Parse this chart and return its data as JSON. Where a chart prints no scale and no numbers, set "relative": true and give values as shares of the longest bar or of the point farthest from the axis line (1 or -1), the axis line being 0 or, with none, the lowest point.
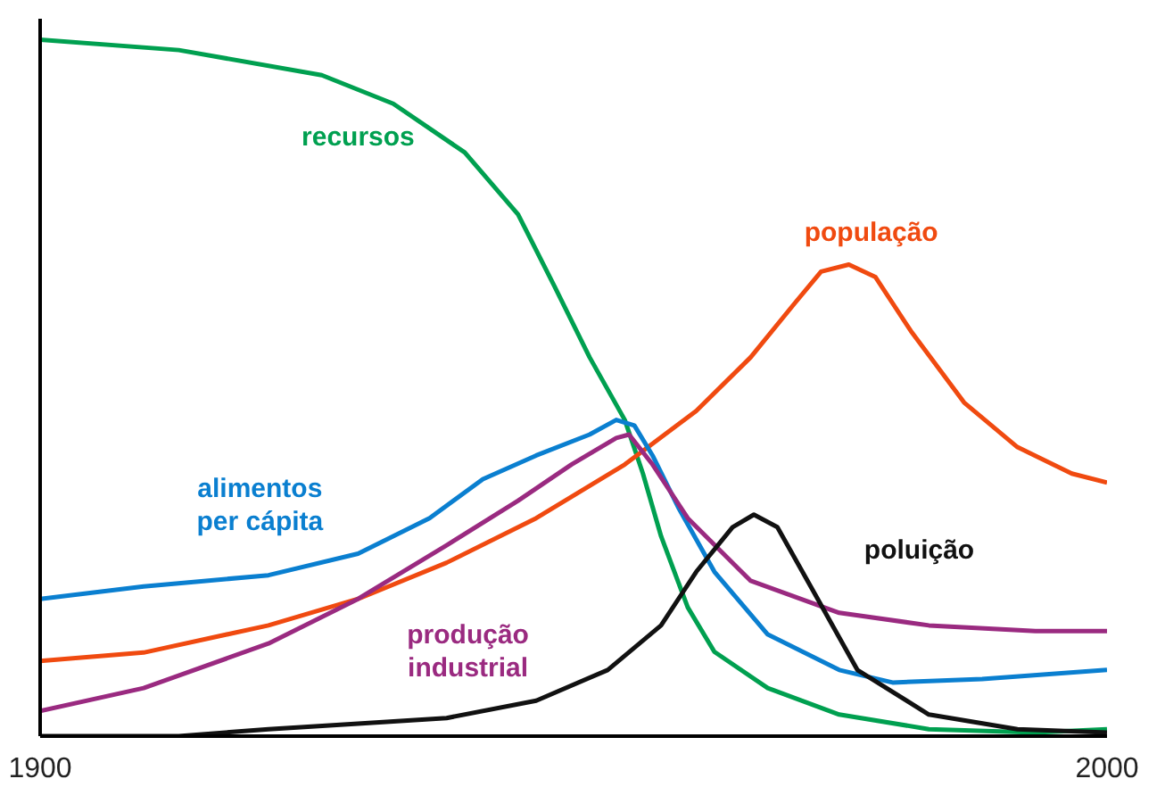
{
  "chart_data": {
    "type": "line",
    "relative": true,
    "xlim": [
      1900,
      2000
    ],
    "xticks": [
      1900,
      2000
    ],
    "legend": false,
    "grid": false,
    "marker": "none",
    "line_style": "solid",
    "series": [
      {
        "name": "recursos",
        "color": "#00a050",
        "x": [
          1900,
          1913.0,
          1926.4,
          1933.1,
          1939.8,
          1944.8,
          1948.2,
          1951.5,
          1954.8,
          1956.5,
          1958.2,
          1960.7,
          1963.2,
          1968.2,
          1974.9,
          1983.3,
          1993.3,
          2000
        ],
        "values": [
          1.0,
          0.985,
          0.949,
          0.908,
          0.838,
          0.749,
          0.646,
          0.544,
          0.454,
          0.377,
          0.287,
          0.185,
          0.121,
          0.069,
          0.031,
          0.01,
          0.005,
          0.01
        ]
      },
      {
        "name": "população",
        "color": "#f04a10",
        "x": [
          1900,
          1909.7,
          1921.4,
          1929.8,
          1938.1,
          1946.5,
          1954.8,
          1961.5,
          1966.6,
          1970.7,
          1973.2,
          1975.8,
          1978.3,
          1981.6,
          1986.6,
          1991.6,
          1996.7,
          2000
        ],
        "values": [
          0.108,
          0.12,
          0.159,
          0.197,
          0.249,
          0.313,
          0.39,
          0.467,
          0.544,
          0.621,
          0.667,
          0.677,
          0.659,
          0.582,
          0.479,
          0.415,
          0.377,
          0.364
        ]
      },
      {
        "name": "alimentos\nper cápita",
        "color": "#0a7fd0",
        "x": [
          1900,
          1909.7,
          1921.4,
          1929.8,
          1936.5,
          1941.5,
          1946.5,
          1951.5,
          1954.0,
          1955.7,
          1957.4,
          1959.9,
          1963.2,
          1968.2,
          1974.9,
          1979.9,
          1988.3,
          2000
        ],
        "values": [
          0.197,
          0.215,
          0.231,
          0.262,
          0.313,
          0.369,
          0.403,
          0.433,
          0.454,
          0.446,
          0.403,
          0.326,
          0.236,
          0.146,
          0.095,
          0.077,
          0.082,
          0.095
        ]
      },
      {
        "name": "produção\nindustrial",
        "color": "#9a2a80",
        "x": [
          1900,
          1909.7,
          1921.4,
          1929.8,
          1938.1,
          1944.8,
          1949.8,
          1954.0,
          1955.2,
          1957.4,
          1960.7,
          1966.6,
          1974.9,
          1983.3,
          1993.3,
          2000
        ],
        "values": [
          0.036,
          0.069,
          0.133,
          0.197,
          0.274,
          0.338,
          0.39,
          0.428,
          0.433,
          0.39,
          0.313,
          0.223,
          0.177,
          0.159,
          0.151,
          0.151
        ]
      },
      {
        "name": "poluição",
        "color": "#111111",
        "x": [
          1900,
          1913.0,
          1921.4,
          1929.8,
          1938.1,
          1946.5,
          1953.2,
          1958.2,
          1961.5,
          1964.9,
          1966.9,
          1969.1,
          1972.4,
          1976.6,
          1983.3,
          1991.6,
          2000
        ],
        "values": [
          0,
          0,
          0.01,
          0.018,
          0.026,
          0.051,
          0.095,
          0.159,
          0.236,
          0.3,
          0.318,
          0.3,
          0.21,
          0.095,
          0.031,
          0.01,
          0.005
        ]
      }
    ]
  }
}
